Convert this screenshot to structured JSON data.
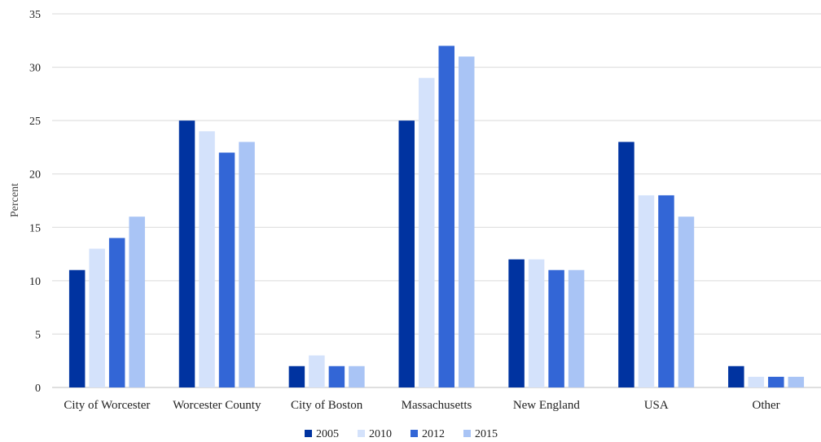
{
  "chart_data": {
    "type": "bar",
    "ylabel": "Percent",
    "ylim": [
      0,
      35
    ],
    "yticks": [
      0,
      5,
      10,
      15,
      20,
      25,
      30,
      35
    ],
    "grid": true,
    "legend_position": "bottom",
    "categories": [
      "City of Worcester",
      "Worcester County",
      "City of Boston",
      "Massachusetts",
      "New England",
      "USA",
      "Other"
    ],
    "series": [
      {
        "name": "2005",
        "color": "#0033a0",
        "values": [
          11,
          25,
          2,
          25,
          12,
          23,
          2
        ]
      },
      {
        "name": "2010",
        "color": "#d4e2fb",
        "values": [
          13,
          24,
          3,
          29,
          12,
          18,
          1
        ]
      },
      {
        "name": "2012",
        "color": "#3366d6",
        "values": [
          14,
          22,
          2,
          32,
          11,
          18,
          1
        ]
      },
      {
        "name": "2015",
        "color": "#a9c4f5",
        "values": [
          16,
          23,
          2,
          31,
          11,
          16,
          1
        ]
      }
    ]
  }
}
